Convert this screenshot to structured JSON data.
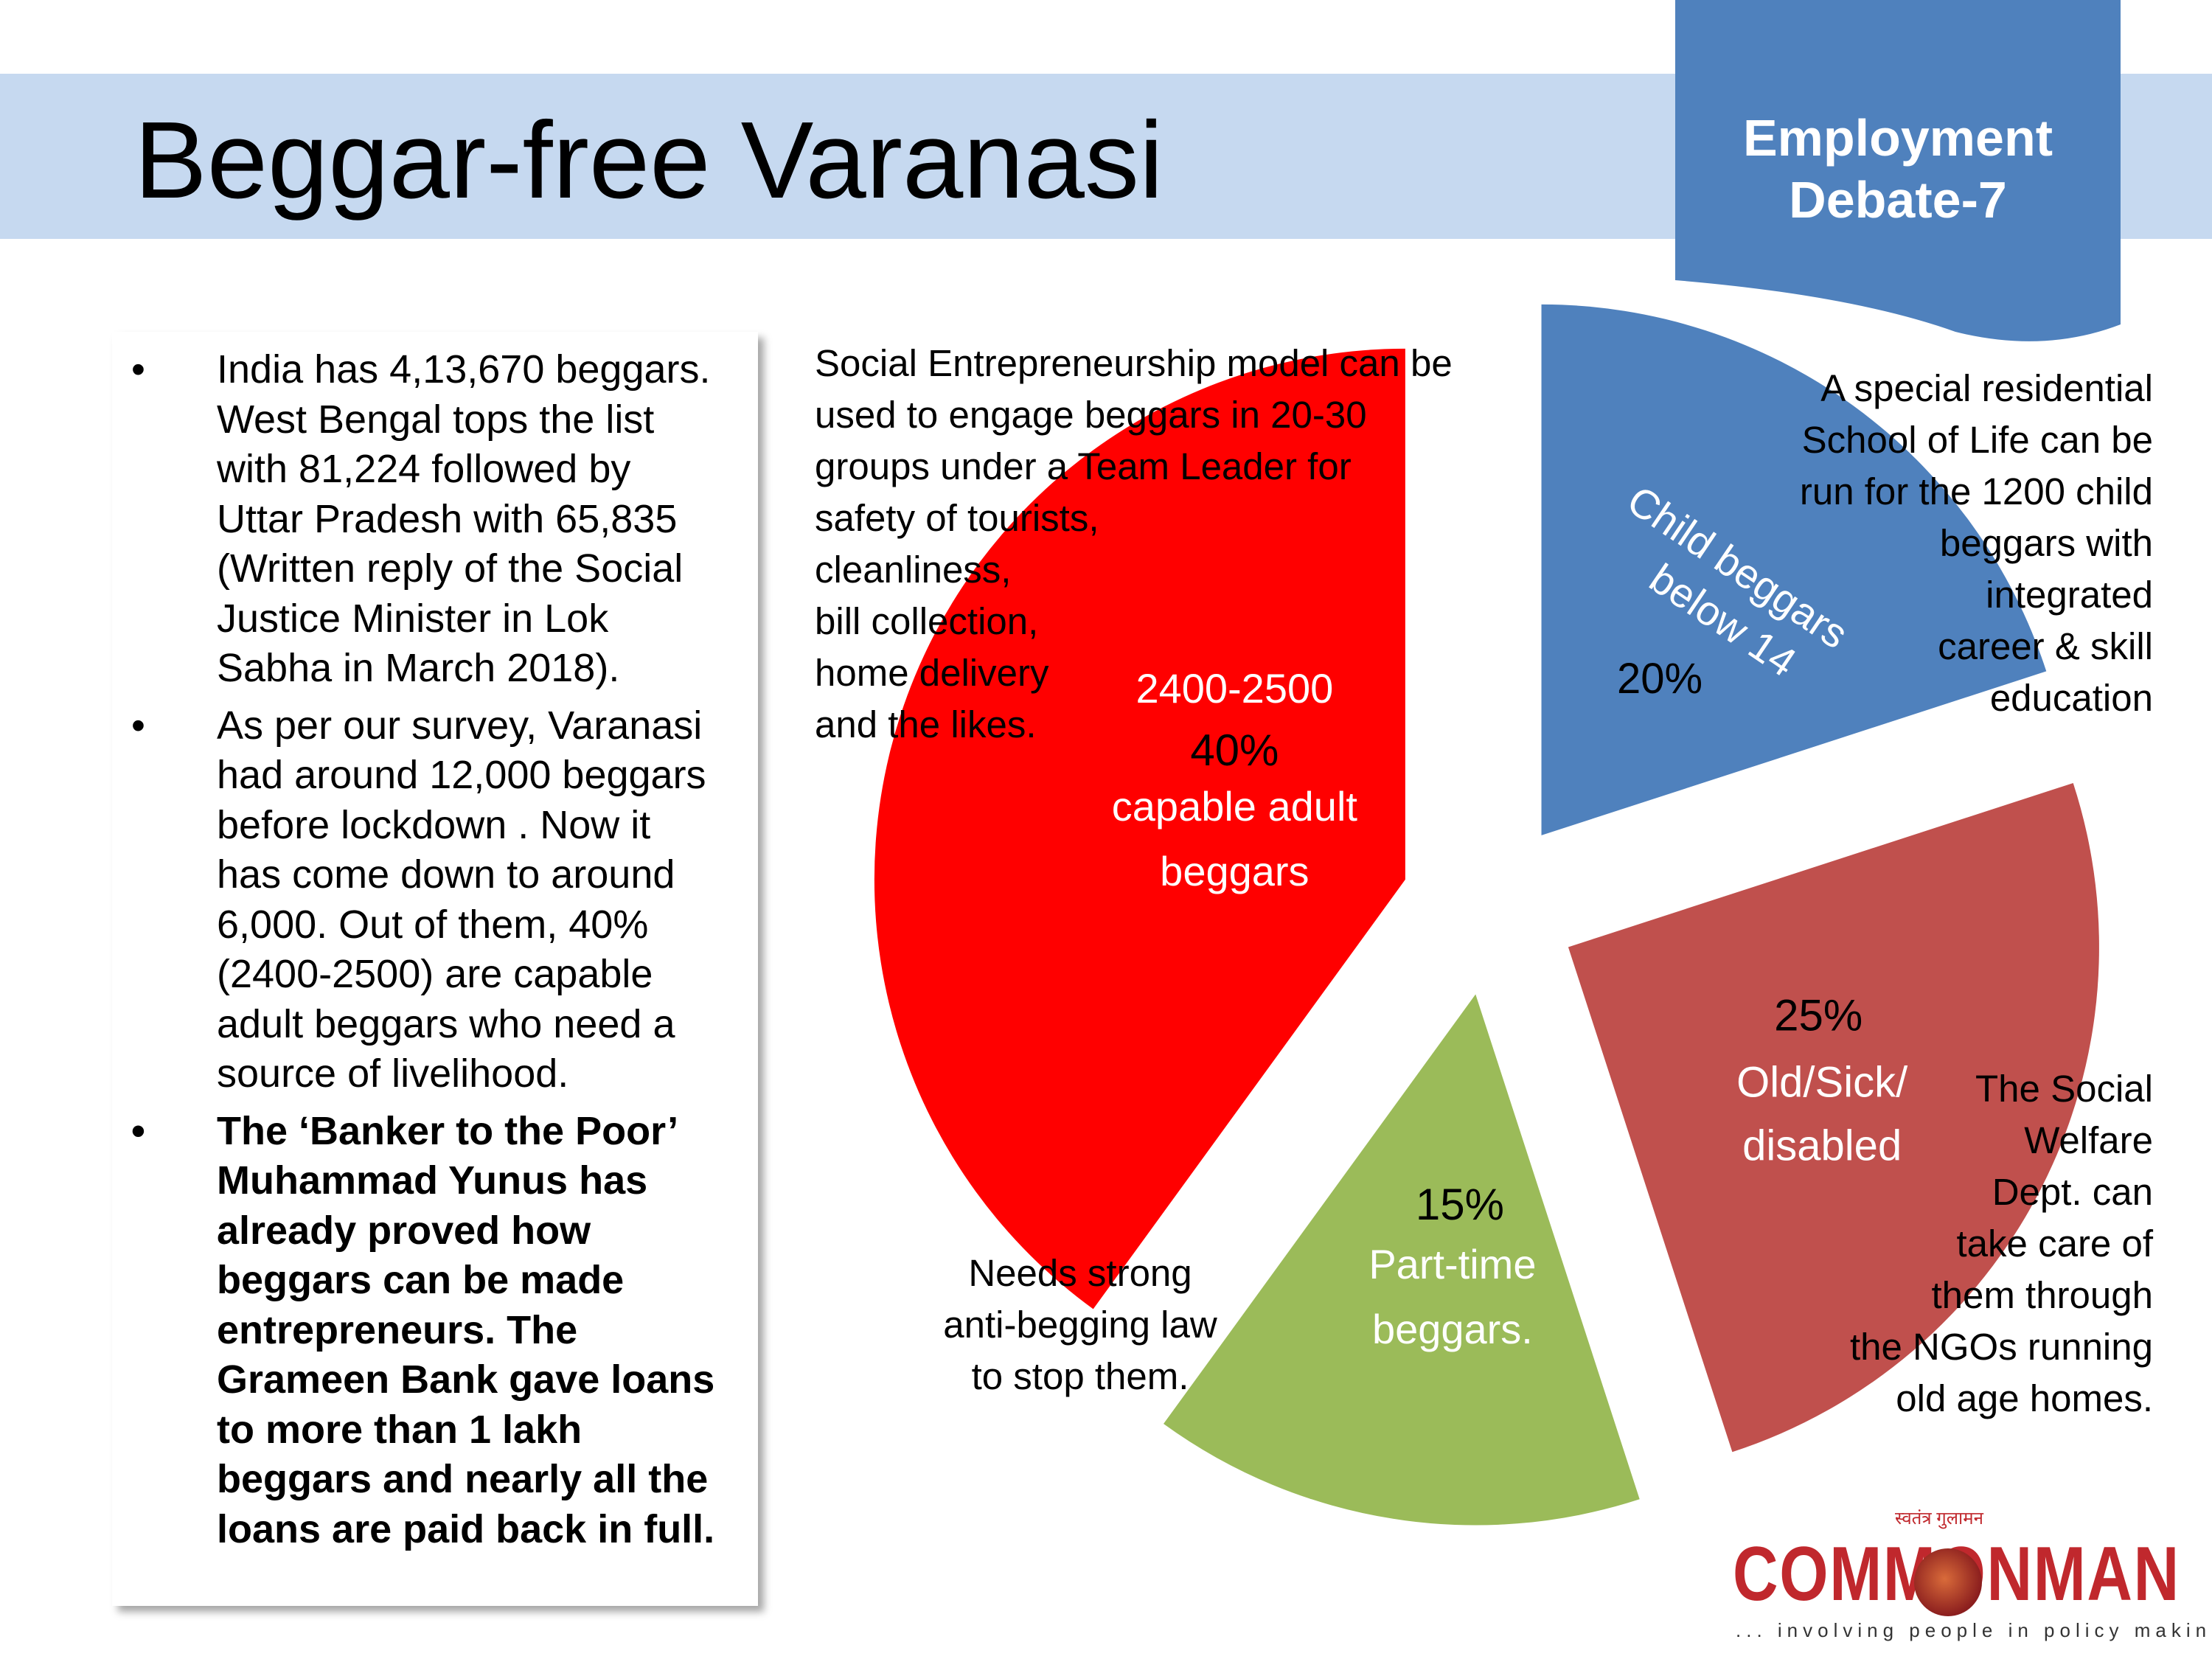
{
  "title": "Beggar-free Varanasi",
  "ribbon": {
    "line1": "Employment",
    "line2": "Debate-7",
    "color": "#4f81bd"
  },
  "bullets": [
    {
      "lines": [
        "India has 4,13,670 beggars.",
        "West Bengal tops the list",
        "with 81,224  followed by",
        "Uttar Pradesh with 65,835",
        "(Written reply of the Social",
        "Justice Minister in Lok",
        "Sabha in March 2018)."
      ],
      "bold": false
    },
    {
      "lines": [
        "As per our survey, Varanasi",
        "had around 12,000 beggars",
        "before lockdown . Now it",
        "has come down to around",
        "6,000. Out of them, 40%",
        "(2400-2500) are capable",
        "adult beggars who need a",
        "source of livelihood."
      ],
      "bold": false
    },
    {
      "lines": [
        "The ‘Banker to the Poor’",
        "Muhammad Yunus has",
        "already proved how",
        "beggars can be made",
        "entrepreneurs. The",
        "Grameen Bank  gave loans",
        "to more than 1 lakh",
        "beggars and nearly all the",
        "loans are paid back in full."
      ],
      "bold": true
    }
  ],
  "notes": {
    "social": [
      "Social Entrepreneurship model can be",
      "used to engage beggars in 20-30",
      "groups under a Team Leader for",
      "safety of tourists,",
      "cleanliness,",
      "bill collection,",
      "home delivery",
      "and the likes."
    ],
    "school": [
      "A special residential",
      "School of Life can be",
      "run for the 1200 child",
      "beggars with",
      "integrated",
      "career & skill",
      "education"
    ],
    "welfare": [
      "The Social",
      "Welfare",
      "Dept. can",
      "take care of",
      "them through",
      "the NGOs running",
      "old age homes."
    ],
    "law": [
      "Needs strong",
      "anti-begging law",
      "to stop them."
    ]
  },
  "chart_data": {
    "type": "pie",
    "exploded": true,
    "slices": [
      {
        "value": 20,
        "pct_label": "20%",
        "label_lines": [
          "Child beggars",
          "below 14"
        ],
        "color": "#4f81bd",
        "text_color": "#ffffff",
        "pct_color": "#000000"
      },
      {
        "value": 25,
        "pct_label": "25%",
        "label_lines": [
          "Old/Sick/",
          "disabled"
        ],
        "color": "#c0504d",
        "text_color": "#ffffff",
        "pct_color": "#000000"
      },
      {
        "value": 15,
        "pct_label": "15%",
        "label_lines": [
          "Part-time",
          "beggars."
        ],
        "color": "#9bbb59",
        "text_color": "#ffffff",
        "pct_color": "#000000"
      },
      {
        "value": 40,
        "pct_label": "40%",
        "top_label": "2400-2500",
        "label_lines": [
          "capable adult",
          "beggars"
        ],
        "color": "#ff0000",
        "text_color": "#ffffff",
        "pct_color": "#000000"
      }
    ]
  },
  "logo": {
    "name": "COMMONMAN",
    "tagline": "... involving people in policy making",
    "hindi": "स्वतंत्र गुलामन"
  }
}
